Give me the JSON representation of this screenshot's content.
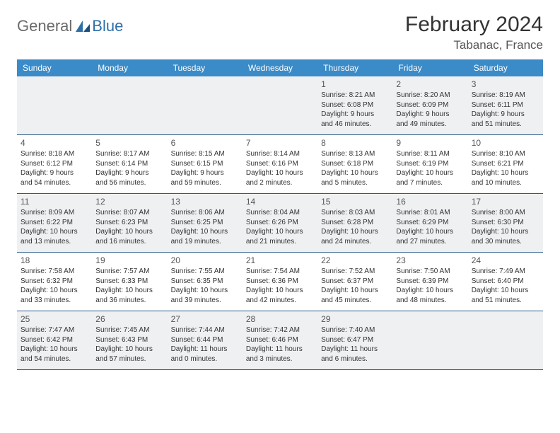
{
  "logo": {
    "part1": "General",
    "part2": "Blue"
  },
  "title": "February 2024",
  "location": "Tabanac, France",
  "colors": {
    "header_bg": "#3b8bc8",
    "header_text": "#ffffff",
    "row_border": "#2b5d8a",
    "shaded_bg": "#eef0f1",
    "logo_gray": "#6b6b6b",
    "logo_blue": "#2f6fa8"
  },
  "days_of_week": [
    "Sunday",
    "Monday",
    "Tuesday",
    "Wednesday",
    "Thursday",
    "Friday",
    "Saturday"
  ],
  "weeks": [
    [
      null,
      null,
      null,
      null,
      {
        "n": "1",
        "sr": "Sunrise: 8:21 AM",
        "ss": "Sunset: 6:08 PM",
        "d1": "Daylight: 9 hours",
        "d2": "and 46 minutes."
      },
      {
        "n": "2",
        "sr": "Sunrise: 8:20 AM",
        "ss": "Sunset: 6:09 PM",
        "d1": "Daylight: 9 hours",
        "d2": "and 49 minutes."
      },
      {
        "n": "3",
        "sr": "Sunrise: 8:19 AM",
        "ss": "Sunset: 6:11 PM",
        "d1": "Daylight: 9 hours",
        "d2": "and 51 minutes."
      }
    ],
    [
      {
        "n": "4",
        "sr": "Sunrise: 8:18 AM",
        "ss": "Sunset: 6:12 PM",
        "d1": "Daylight: 9 hours",
        "d2": "and 54 minutes."
      },
      {
        "n": "5",
        "sr": "Sunrise: 8:17 AM",
        "ss": "Sunset: 6:14 PM",
        "d1": "Daylight: 9 hours",
        "d2": "and 56 minutes."
      },
      {
        "n": "6",
        "sr": "Sunrise: 8:15 AM",
        "ss": "Sunset: 6:15 PM",
        "d1": "Daylight: 9 hours",
        "d2": "and 59 minutes."
      },
      {
        "n": "7",
        "sr": "Sunrise: 8:14 AM",
        "ss": "Sunset: 6:16 PM",
        "d1": "Daylight: 10 hours",
        "d2": "and 2 minutes."
      },
      {
        "n": "8",
        "sr": "Sunrise: 8:13 AM",
        "ss": "Sunset: 6:18 PM",
        "d1": "Daylight: 10 hours",
        "d2": "and 5 minutes."
      },
      {
        "n": "9",
        "sr": "Sunrise: 8:11 AM",
        "ss": "Sunset: 6:19 PM",
        "d1": "Daylight: 10 hours",
        "d2": "and 7 minutes."
      },
      {
        "n": "10",
        "sr": "Sunrise: 8:10 AM",
        "ss": "Sunset: 6:21 PM",
        "d1": "Daylight: 10 hours",
        "d2": "and 10 minutes."
      }
    ],
    [
      {
        "n": "11",
        "sr": "Sunrise: 8:09 AM",
        "ss": "Sunset: 6:22 PM",
        "d1": "Daylight: 10 hours",
        "d2": "and 13 minutes."
      },
      {
        "n": "12",
        "sr": "Sunrise: 8:07 AM",
        "ss": "Sunset: 6:23 PM",
        "d1": "Daylight: 10 hours",
        "d2": "and 16 minutes."
      },
      {
        "n": "13",
        "sr": "Sunrise: 8:06 AM",
        "ss": "Sunset: 6:25 PM",
        "d1": "Daylight: 10 hours",
        "d2": "and 19 minutes."
      },
      {
        "n": "14",
        "sr": "Sunrise: 8:04 AM",
        "ss": "Sunset: 6:26 PM",
        "d1": "Daylight: 10 hours",
        "d2": "and 21 minutes."
      },
      {
        "n": "15",
        "sr": "Sunrise: 8:03 AM",
        "ss": "Sunset: 6:28 PM",
        "d1": "Daylight: 10 hours",
        "d2": "and 24 minutes."
      },
      {
        "n": "16",
        "sr": "Sunrise: 8:01 AM",
        "ss": "Sunset: 6:29 PM",
        "d1": "Daylight: 10 hours",
        "d2": "and 27 minutes."
      },
      {
        "n": "17",
        "sr": "Sunrise: 8:00 AM",
        "ss": "Sunset: 6:30 PM",
        "d1": "Daylight: 10 hours",
        "d2": "and 30 minutes."
      }
    ],
    [
      {
        "n": "18",
        "sr": "Sunrise: 7:58 AM",
        "ss": "Sunset: 6:32 PM",
        "d1": "Daylight: 10 hours",
        "d2": "and 33 minutes."
      },
      {
        "n": "19",
        "sr": "Sunrise: 7:57 AM",
        "ss": "Sunset: 6:33 PM",
        "d1": "Daylight: 10 hours",
        "d2": "and 36 minutes."
      },
      {
        "n": "20",
        "sr": "Sunrise: 7:55 AM",
        "ss": "Sunset: 6:35 PM",
        "d1": "Daylight: 10 hours",
        "d2": "and 39 minutes."
      },
      {
        "n": "21",
        "sr": "Sunrise: 7:54 AM",
        "ss": "Sunset: 6:36 PM",
        "d1": "Daylight: 10 hours",
        "d2": "and 42 minutes."
      },
      {
        "n": "22",
        "sr": "Sunrise: 7:52 AM",
        "ss": "Sunset: 6:37 PM",
        "d1": "Daylight: 10 hours",
        "d2": "and 45 minutes."
      },
      {
        "n": "23",
        "sr": "Sunrise: 7:50 AM",
        "ss": "Sunset: 6:39 PM",
        "d1": "Daylight: 10 hours",
        "d2": "and 48 minutes."
      },
      {
        "n": "24",
        "sr": "Sunrise: 7:49 AM",
        "ss": "Sunset: 6:40 PM",
        "d1": "Daylight: 10 hours",
        "d2": "and 51 minutes."
      }
    ],
    [
      {
        "n": "25",
        "sr": "Sunrise: 7:47 AM",
        "ss": "Sunset: 6:42 PM",
        "d1": "Daylight: 10 hours",
        "d2": "and 54 minutes."
      },
      {
        "n": "26",
        "sr": "Sunrise: 7:45 AM",
        "ss": "Sunset: 6:43 PM",
        "d1": "Daylight: 10 hours",
        "d2": "and 57 minutes."
      },
      {
        "n": "27",
        "sr": "Sunrise: 7:44 AM",
        "ss": "Sunset: 6:44 PM",
        "d1": "Daylight: 11 hours",
        "d2": "and 0 minutes."
      },
      {
        "n": "28",
        "sr": "Sunrise: 7:42 AM",
        "ss": "Sunset: 6:46 PM",
        "d1": "Daylight: 11 hours",
        "d2": "and 3 minutes."
      },
      {
        "n": "29",
        "sr": "Sunrise: 7:40 AM",
        "ss": "Sunset: 6:47 PM",
        "d1": "Daylight: 11 hours",
        "d2": "and 6 minutes."
      },
      null,
      null
    ]
  ]
}
